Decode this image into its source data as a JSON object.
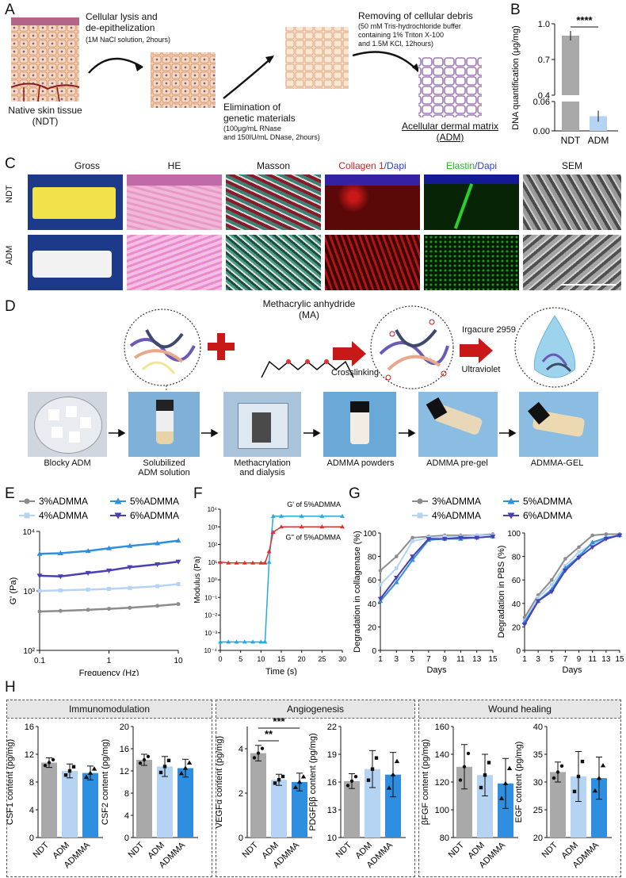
{
  "panelA": {
    "label": "A",
    "step1_title": "Cellular lysis and\nde-epithelization",
    "step1_detail": "(1M NaCl solution, 2hours)",
    "native_caption": "Native skin tissue\n(NDT)",
    "step2_title": "Elimination of\ngenetic materials",
    "step2_detail": "(100μg/mL RNase\nand 150IU/mL DNase, 2hours)",
    "step3_title": "Removing of cellular debris",
    "step3_detail": "(50 mM Tris-hydrochloride buffer\ncontaining 1% Triton X-100\nand 1.5M KCl, 12hours)",
    "adm_caption": "Acellular dermal matrix\n(ADM)"
  },
  "panelB": {
    "label": "B",
    "significance": "****",
    "chart_data": {
      "type": "bar",
      "categories": [
        "NDT",
        "ADM"
      ],
      "values": [
        0.9,
        0.03
      ],
      "ylabel": "DNA quantification (μg/mg)",
      "yticks_upper": [
        "1.0",
        "0.7",
        "0.4"
      ],
      "yticks_lower": [
        "0.06",
        "0.00"
      ]
    }
  },
  "panelC": {
    "label": "C",
    "columns": [
      "Gross",
      "HE",
      "Masson",
      "Collagen 1",
      "/Dapi",
      "Elastin",
      "/Dapi",
      "SEM"
    ],
    "rows": [
      "NDT",
      "ADM"
    ]
  },
  "panelD": {
    "label": "D",
    "reagent": "Methacrylic anhydride\n(MA)",
    "crosslinking": "Crosslinking",
    "irgacure": "Irgacure 2959",
    "ultraviolet": "Ultraviolet",
    "steps": [
      "Blocky ADM",
      "Solubilized\nADM solution",
      "Methacrylation\nand dialysis",
      "ADMMA powders",
      "ADMMA pre-gel",
      "ADMMA-GEL"
    ]
  },
  "panelE": {
    "label": "E",
    "legend": [
      "3%ADMMA",
      "5%ADMMA",
      "4%ADMMA",
      "6%ADMMA"
    ],
    "colors": {
      "c3": "#8c8c8c",
      "c4": "#b5d3f2",
      "c5": "#2e8fe0",
      "c6": "#4a3fb5"
    },
    "chart_data": {
      "type": "line",
      "xlabel": "Frequency (Hz)",
      "ylabel": "G' (Pa)",
      "xscale": "log",
      "yscale": "log",
      "xlim": [
        0.1,
        10
      ],
      "ylim": [
        100,
        10000
      ],
      "xticks": [
        "0.1",
        "1",
        "10"
      ],
      "yticks": [
        "10²",
        "10³",
        "10⁴"
      ],
      "series": [
        {
          "name": "3%ADMMA",
          "x": [
            0.1,
            0.2,
            0.5,
            1,
            2,
            5,
            10
          ],
          "y": [
            450,
            460,
            480,
            500,
            520,
            560,
            600
          ]
        },
        {
          "name": "4%ADMMA",
          "x": [
            0.1,
            0.2,
            0.5,
            1,
            2,
            5,
            10
          ],
          "y": [
            1000,
            1020,
            1050,
            1080,
            1120,
            1200,
            1300
          ]
        },
        {
          "name": "5%ADMMA",
          "x": [
            0.1,
            0.2,
            0.5,
            1,
            2,
            5,
            10
          ],
          "y": [
            4200,
            4300,
            4700,
            5200,
            5700,
            6300,
            7000
          ]
        },
        {
          "name": "6%ADMMA",
          "x": [
            0.1,
            0.2,
            0.5,
            1,
            2,
            5,
            10
          ],
          "y": [
            1800,
            1750,
            2000,
            2200,
            2500,
            2800,
            3100
          ]
        }
      ]
    }
  },
  "panelF": {
    "label": "F",
    "series_label_1": "G' of 5%ADMMA",
    "series_label_2": "G'' of 5%ADMMA",
    "chart_data": {
      "type": "line",
      "xlabel": "Time (s)",
      "ylabel": "Modulus (Pa)",
      "yscale": "log",
      "xlim": [
        0,
        30
      ],
      "ylim": [
        0.0001,
        10000
      ],
      "xticks": [
        "0",
        "5",
        "10",
        "15",
        "20",
        "25",
        "30"
      ],
      "yticks": [
        "10⁻⁴",
        "10⁻³",
        "10⁻²",
        "10⁻¹",
        "10⁰",
        "10¹",
        "10²",
        "10³",
        "10⁴"
      ],
      "series": [
        {
          "name": "G' of 5%ADMMA",
          "x": [
            0,
            2,
            4,
            6,
            8,
            10,
            11,
            12,
            13,
            15,
            20,
            25,
            30
          ],
          "y": [
            0.0003,
            0.0003,
            0.0003,
            0.0003,
            0.0003,
            0.0003,
            0.0003,
            10,
            4000,
            4000,
            4000,
            4000,
            4000
          ]
        },
        {
          "name": "G'' of 5%ADMMA",
          "x": [
            0,
            2,
            4,
            6,
            8,
            10,
            11,
            12,
            13,
            15,
            20,
            25,
            30
          ],
          "y": [
            10,
            9,
            9,
            9,
            9,
            9,
            9,
            40,
            500,
            1000,
            1000,
            1000,
            1000
          ]
        }
      ]
    }
  },
  "panelG": {
    "label": "G",
    "legend": [
      "3%ADMMA",
      "5%ADMMA",
      "4%ADMMA",
      "6%ADMMA"
    ],
    "chart_data": [
      {
        "type": "line",
        "xlabel": "Days",
        "ylabel": "Degradation in collagenase (%)",
        "ylim": [
          0,
          100
        ],
        "yticks": [
          "0",
          "20",
          "40",
          "60",
          "80",
          "100"
        ],
        "xticks": [
          "1",
          "3",
          "5",
          "7",
          "9",
          "11",
          "13",
          "15"
        ],
        "series": [
          {
            "name": "3%ADMMA",
            "x": [
              1,
              3,
              5,
              7,
              9,
              11,
              13,
              15
            ],
            "y": [
              68,
              80,
              96,
              97,
              98,
              98,
              98,
              99
            ]
          },
          {
            "name": "4%ADMMA",
            "x": [
              1,
              3,
              5,
              7,
              9,
              11,
              13,
              15
            ],
            "y": [
              56,
              70,
              93,
              96,
              97,
              97,
              98,
              98
            ]
          },
          {
            "name": "5%ADMMA",
            "x": [
              1,
              3,
              5,
              7,
              9,
              11,
              13,
              15
            ],
            "y": [
              42,
              58,
              77,
              94,
              95,
              95,
              96,
              97
            ]
          },
          {
            "name": "6%ADMMA",
            "x": [
              1,
              3,
              5,
              7,
              9,
              11,
              13,
              15
            ],
            "y": [
              44,
              62,
              80,
              95,
              95,
              96,
              96,
              97
            ]
          }
        ]
      },
      {
        "type": "line",
        "xlabel": "Days",
        "ylabel": "Degradation in PBS (%)",
        "ylim": [
          0,
          100
        ],
        "yticks": [
          "0",
          "20",
          "40",
          "60",
          "80",
          "100"
        ],
        "xticks": [
          "1",
          "3",
          "5",
          "7",
          "9",
          "11",
          "13",
          "15"
        ],
        "series": [
          {
            "name": "3%ADMMA",
            "x": [
              1,
              3,
              5,
              7,
              9,
              11,
              13,
              15
            ],
            "y": [
              28,
              47,
              60,
              78,
              88,
              98,
              99,
              99
            ]
          },
          {
            "name": "4%ADMMA",
            "x": [
              1,
              3,
              5,
              7,
              9,
              11,
              13,
              15
            ],
            "y": [
              25,
              45,
              56,
              72,
              84,
              90,
              96,
              98
            ]
          },
          {
            "name": "5%ADMMA",
            "x": [
              1,
              3,
              5,
              7,
              9,
              11,
              13,
              15
            ],
            "y": [
              24,
              42,
              52,
              70,
              80,
              92,
              96,
              98
            ]
          },
          {
            "name": "6%ADMMA",
            "x": [
              1,
              3,
              5,
              7,
              9,
              11,
              13,
              15
            ],
            "y": [
              22,
              42,
              50,
              68,
              79,
              88,
              95,
              98
            ]
          }
        ]
      }
    ]
  },
  "panelH": {
    "label": "H",
    "groups": [
      "Immunomodulation",
      "Angiogenesis",
      "Wound healing"
    ],
    "categories": [
      "NDT",
      "ADM",
      "ADMMA"
    ],
    "sig1": "***",
    "sig2": "**",
    "chart_data": [
      {
        "type": "bar",
        "ylabel": "CSF1 content (pg/mg)",
        "ylim": [
          0,
          16
        ],
        "yticks": [
          "0",
          "4",
          "8",
          "12",
          "16"
        ],
        "categories": [
          "NDT",
          "ADM",
          "ADMMA"
        ],
        "values": [
          10.8,
          9.6,
          9.3
        ],
        "errors": [
          0.7,
          1.0,
          1.0
        ]
      },
      {
        "type": "bar",
        "ylabel": "CSF2 content (pg/mg)",
        "ylim": [
          0,
          20
        ],
        "yticks": [
          "0",
          "4",
          "8",
          "12",
          "16",
          "20"
        ],
        "categories": [
          "NDT",
          "ADM",
          "ADMMA"
        ],
        "values": [
          14.0,
          12.8,
          12.5
        ],
        "errors": [
          1.0,
          1.8,
          1.6
        ]
      },
      {
        "type": "bar",
        "ylabel": "VEGFα content (pg/mg)",
        "ylim": [
          0,
          5
        ],
        "yticks": [
          "0",
          "2",
          "4"
        ],
        "categories": [
          "NDT",
          "ADM",
          "ADMMA"
        ],
        "values": [
          3.8,
          2.6,
          2.5
        ],
        "errors": [
          0.35,
          0.25,
          0.4
        ]
      },
      {
        "type": "bar",
        "ylabel": "PDGFββ content (pg/mg)",
        "ylim": [
          10,
          22
        ],
        "yticks": [
          "10",
          "13",
          "16",
          "19",
          "22"
        ],
        "categories": [
          "NDT",
          "ADM",
          "ADMMA"
        ],
        "values": [
          16.1,
          17.4,
          16.8
        ],
        "errors": [
          0.8,
          2.0,
          2.4
        ]
      },
      {
        "type": "bar",
        "ylabel": "βFGF content (pg/mg)",
        "ylim": [
          80,
          160
        ],
        "yticks": [
          "80",
          "100",
          "120",
          "140",
          "160"
        ],
        "categories": [
          "NDT",
          "ADM",
          "ADMMA"
        ],
        "values": [
          131,
          125,
          119
        ],
        "errors": [
          16,
          15,
          18
        ]
      },
      {
        "type": "bar",
        "ylabel": "EGF content (pg/mg)",
        "ylim": [
          20,
          40
        ],
        "yticks": [
          "20",
          "25",
          "30",
          "35",
          "40"
        ],
        "categories": [
          "NDT",
          "ADM",
          "ADMMA"
        ],
        "values": [
          31.8,
          31.0,
          30.7
        ],
        "errors": [
          1.8,
          4.5,
          3.8
        ]
      }
    ]
  }
}
